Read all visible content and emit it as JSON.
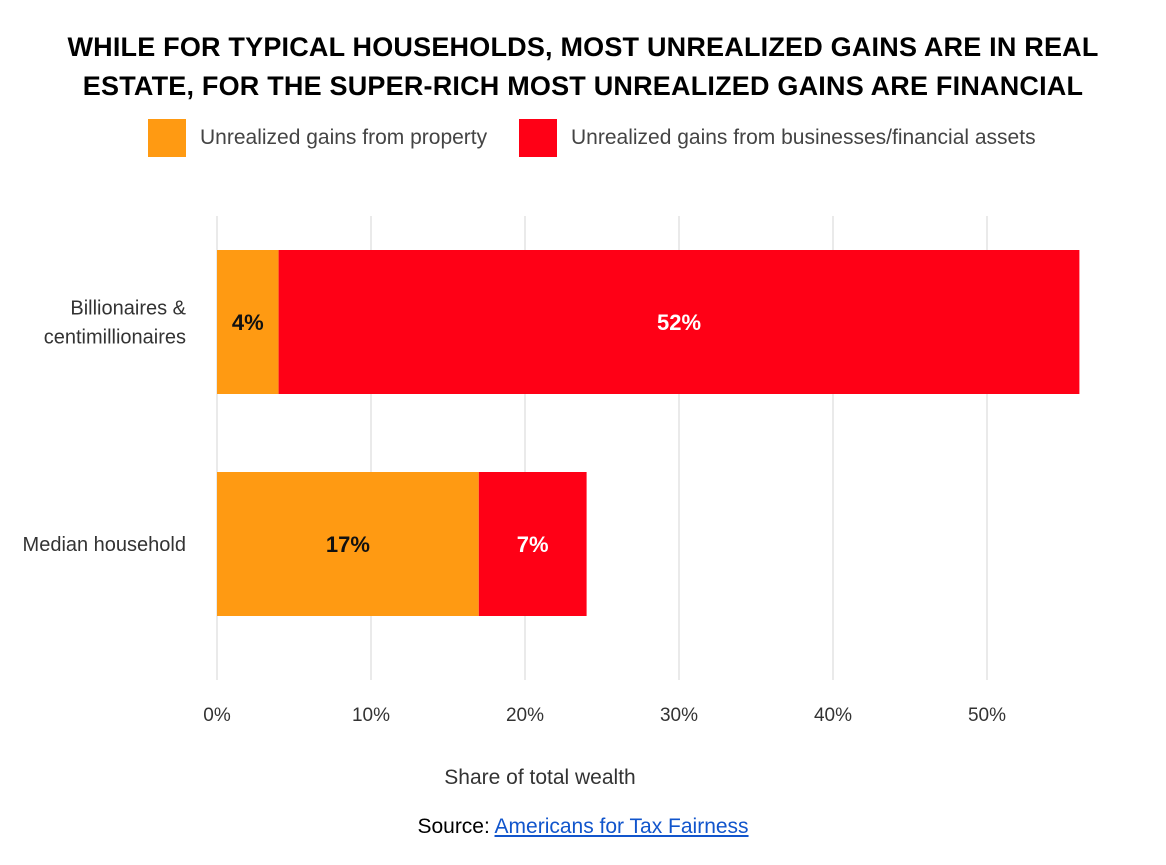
{
  "title_lines": [
    "WHILE FOR TYPICAL HOUSEHOLDS, MOST UNREALIZED GAINS ARE IN REAL",
    "ESTATE, FOR THE SUPER-RICH MOST UNREALIZED GAINS ARE FINANCIAL"
  ],
  "source": {
    "prefix": "Source: ",
    "link_text": "Americans for Tax Fairness"
  },
  "colors": {
    "property": "#ff9a12",
    "financial": "#ff0016",
    "grid": "#e4e4e4",
    "tick_text": "#333333",
    "label_dark": "#111111",
    "label_light": "#ffffff"
  },
  "chart_data": {
    "type": "bar",
    "orientation": "horizontal",
    "stacked": true,
    "title": "WHILE FOR TYPICAL HOUSEHOLDS, MOST UNREALIZED GAINS ARE IN REAL ESTATE, FOR THE SUPER-RICH MOST UNREALIZED GAINS ARE FINANCIAL",
    "categories": [
      [
        "Billionaires &",
        "centimillionaires"
      ],
      [
        "Median household"
      ]
    ],
    "series": [
      {
        "name": "Unrealized gains from property",
        "color": "#ff9a12",
        "values": [
          4,
          17
        ],
        "data_labels": [
          "4%",
          "17%"
        ],
        "label_color": "#111111"
      },
      {
        "name": "Unrealized gains from businesses/financial assets",
        "color": "#ff0016",
        "values": [
          52,
          7
        ],
        "data_labels": [
          "52%",
          "7%"
        ],
        "label_color": "#ffffff"
      }
    ],
    "xlabel": "Share of total wealth",
    "ylabel": "",
    "xlim": [
      0,
      56
    ],
    "x_ticks": [
      0,
      10,
      20,
      30,
      40,
      50
    ],
    "x_tick_labels": [
      "0%",
      "10%",
      "20%",
      "30%",
      "40%",
      "50%"
    ],
    "grid": true,
    "legend_position": "top"
  }
}
